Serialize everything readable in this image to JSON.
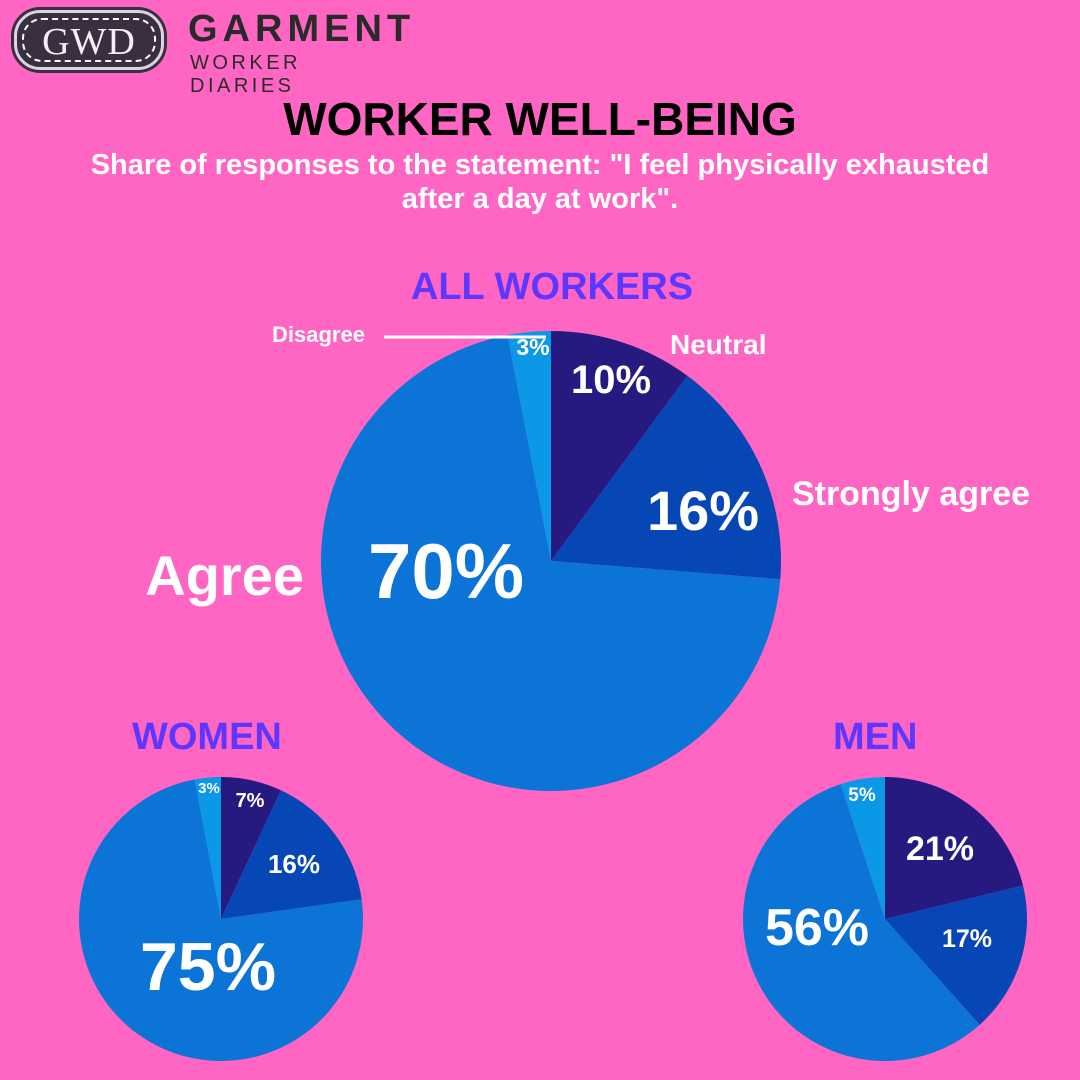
{
  "logo": {
    "badge_text": "GWD",
    "brand_line1": "GARMENT",
    "brand_line2": "WORKER DIARIES"
  },
  "title": "WORKER WELL-BEING",
  "subtitle_line1": "Share of responses to the statement: \"I feel physically exhausted",
  "subtitle_line2": "after a day at work\".",
  "colors": {
    "background": "#ff66c4",
    "neutral": "#261a80",
    "strongly_agree": "#0747b5",
    "agree": "#0b74d6",
    "disagree": "#0b98e6",
    "heading": "#5e37ff"
  },
  "chart_data": [
    {
      "type": "pie",
      "title": "ALL WORKERS",
      "slices": [
        {
          "name": "Neutral",
          "value": 10,
          "label": "10%"
        },
        {
          "name": "Strongly agree",
          "value": 16,
          "label": "16%"
        },
        {
          "name": "Agree",
          "value": 70,
          "label": "70%"
        },
        {
          "name": "Disagree",
          "value": 3,
          "label": "3%"
        }
      ]
    },
    {
      "type": "pie",
      "title": "WOMEN",
      "slices": [
        {
          "name": "Neutral",
          "value": 7,
          "label": "7%"
        },
        {
          "name": "Strongly agree",
          "value": 16,
          "label": "16%"
        },
        {
          "name": "Agree",
          "value": 75,
          "label": "75%"
        },
        {
          "name": "Disagree",
          "value": 3,
          "label": "3%"
        }
      ]
    },
    {
      "type": "pie",
      "title": "MEN",
      "slices": [
        {
          "name": "Neutral",
          "value": 21,
          "label": "21%"
        },
        {
          "name": "Strongly agree",
          "value": 17,
          "label": "17%"
        },
        {
          "name": "Agree",
          "value": 56,
          "label": "56%"
        },
        {
          "name": "Disagree",
          "value": 5,
          "label": "5%"
        }
      ]
    }
  ]
}
